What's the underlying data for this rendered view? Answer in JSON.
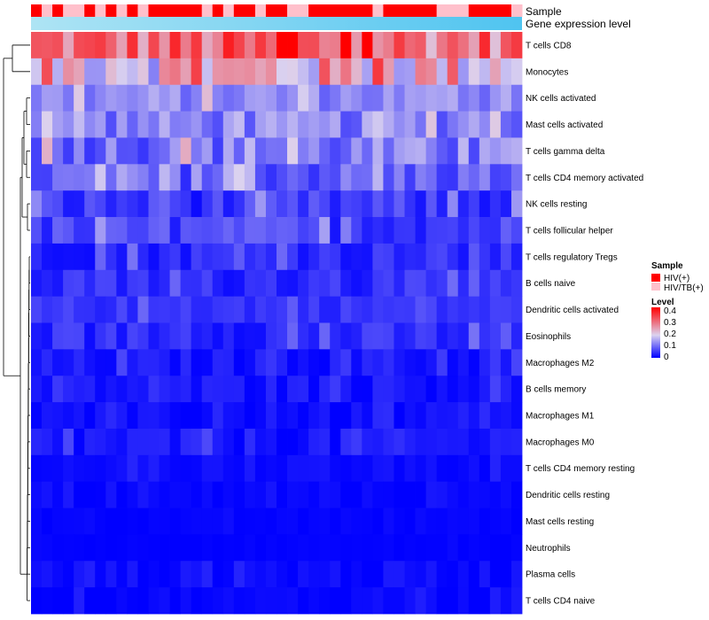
{
  "chart_data": {
    "type": "heatmap",
    "title": "",
    "row_labels": [
      "T cells CD8",
      "Monocytes",
      "NK cells activated",
      "Mast cells activated",
      "T cells gamma delta",
      "T cells CD4 memory activated",
      "NK cells resting",
      "T cells follicular helper",
      "T cells regulatory  Tregs",
      "B cells naive",
      "Dendritic cells activated",
      "Eosinophils",
      "Macrophages M2",
      "B cells memory",
      "Macrophages M1",
      "Macrophages M0",
      "T cells CD4 memory resting",
      "Dendritic cells resting",
      "Mast cells resting",
      "Neutrophils",
      "Plasma cells",
      "T cells CD4 naive"
    ],
    "n_columns": 46,
    "top_annotations": [
      {
        "name": "Sample"
      },
      {
        "name": "Gene expression level"
      }
    ],
    "sample_groups": [
      "HIV(+)",
      "HIV/TB(+)"
    ],
    "sample_group_colors": [
      "#ff0000",
      "#ffc0cb"
    ],
    "sample_annotation": [
      0,
      1,
      0,
      1,
      1,
      0,
      1,
      0,
      1,
      0,
      1,
      0,
      0,
      0,
      0,
      0,
      1,
      0,
      1,
      0,
      0,
      1,
      0,
      0,
      1,
      1,
      0,
      0,
      0,
      0,
      0,
      0,
      1,
      0,
      0,
      0,
      0,
      0,
      1,
      1,
      1,
      0,
      0,
      0,
      0,
      1
    ],
    "expression_gradient": [
      "#aee4f4",
      "#4fc4f0"
    ],
    "row_mean_levels": [
      0.32,
      0.24,
      0.13,
      0.12,
      0.11,
      0.09,
      0.05,
      0.06,
      0.04,
      0.04,
      0.05,
      0.04,
      0.02,
      0.02,
      0.01,
      0.02,
      0.01,
      0.005,
      0.003,
      0.002,
      0.01,
      0.005
    ],
    "row_spread": [
      0.1,
      0.12,
      0.04,
      0.05,
      0.06,
      0.05,
      0.04,
      0.04,
      0.03,
      0.03,
      0.02,
      0.03,
      0.02,
      0.02,
      0.015,
      0.025,
      0.01,
      0.008,
      0.004,
      0.003,
      0.015,
      0.01
    ],
    "color_scale": {
      "min": 0,
      "max": 0.45,
      "stops": [
        {
          "value": 0,
          "color": "#0000ff"
        },
        {
          "value": 0.2,
          "color": "#dcd3ef"
        },
        {
          "value": 0.45,
          "color": "#ff0000"
        }
      ]
    },
    "dendrogram": "hierarchical clustering of rows (left)"
  },
  "legend": {
    "sample_title": "Sample",
    "sample_items": [
      "HIV(+)",
      "HIV/TB(+)"
    ],
    "level_title": "Level",
    "level_ticks": [
      "0.4",
      "0.3",
      "0.2",
      "0.1",
      "0"
    ]
  }
}
